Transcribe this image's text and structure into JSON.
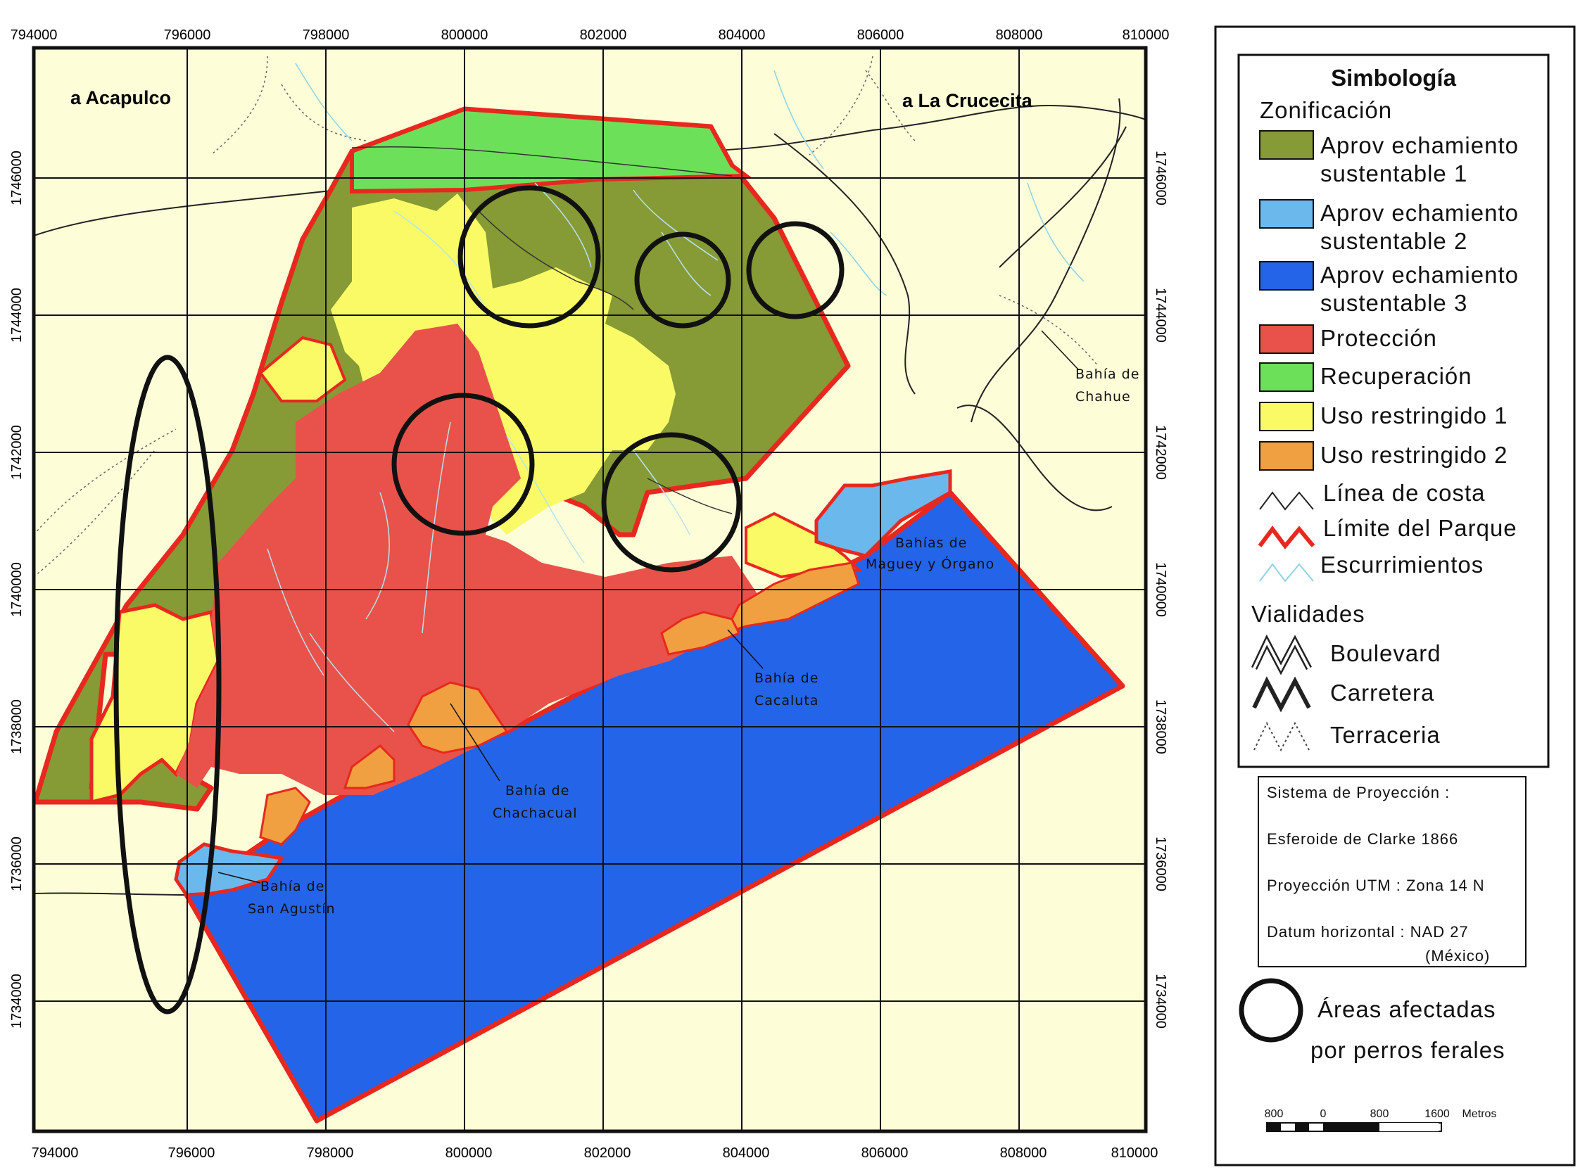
{
  "map": {
    "corner_labels": [
      "a Acapulco",
      "a La Crucecita"
    ],
    "x_ticks": [
      "794000",
      "796000",
      "798000",
      "800000",
      "802000",
      "804000",
      "806000",
      "808000",
      "810000"
    ],
    "y_ticks": [
      "1746000",
      "1744000",
      "1742000",
      "1740000",
      "1738000",
      "1736000",
      "1734000"
    ],
    "places": [
      [
        "Bahía de",
        "Chahue"
      ],
      [
        "Bahías de",
        "Maguey y Órgano"
      ],
      [
        "Bahía de",
        "Cacaluta"
      ],
      [
        "Bahía de",
        "Chachacual"
      ],
      [
        "Bahía de",
        "San Agustín"
      ]
    ],
    "affected_area_count": 6
  },
  "legend": {
    "title": "Simbología",
    "zoning_header": "Zonificación",
    "zones": [
      {
        "label": [
          "Aprov echamiento",
          "sustentable 1"
        ],
        "color": "#869a35"
      },
      {
        "label": [
          "Aprov echamiento",
          "sustentable 2"
        ],
        "color": "#6ab8ec"
      },
      {
        "label": [
          "Aprov echamiento",
          "sustentable 3"
        ],
        "color": "#2464e8"
      },
      {
        "label": [
          "Protección"
        ],
        "color": "#e8524a"
      },
      {
        "label": [
          "Recuperación"
        ],
        "color": "#6de05a"
      },
      {
        "label": [
          "Uso restringido 1"
        ],
        "color": "#fafa66"
      },
      {
        "label": [
          "Uso restringido 2"
        ],
        "color": "#f0a040"
      }
    ],
    "lines": [
      {
        "label": "Línea de costa",
        "icon": "coastline-line-icon"
      },
      {
        "label": "Límite del Parque",
        "icon": "park-boundary-line-icon"
      },
      {
        "label": "Escurrimientos",
        "icon": "runoff-line-icon"
      }
    ],
    "roads_header": "Vialidades",
    "roads": [
      {
        "label": "Boulevard",
        "icon": "boulevard-line-icon"
      },
      {
        "label": "Carretera",
        "icon": "highway-line-icon"
      },
      {
        "label": "Terraceria",
        "icon": "dirt-road-line-icon"
      }
    ]
  },
  "projection": {
    "title": "Sistema de Proyección :",
    "spheroid": "Esferoide de Clarke 1866",
    "utm": "Proyección UTM : Zona 14 N",
    "datum": "Datum horizontal : NAD 27",
    "datum_region": "(México)"
  },
  "affected": {
    "line1": "Áreas afectadas",
    "line2": "por perros ferales"
  },
  "scalebar": {
    "labels": [
      "800",
      "0",
      "800",
      "1600"
    ],
    "unit": "Metros"
  },
  "colors": {
    "background": "#fdfdd8",
    "park_boundary": "#e8281e",
    "runoff": "#8fd3e6",
    "sustentable1": "#869a35",
    "sustentable2": "#6ab8ec",
    "sustentable3": "#2464e8",
    "proteccion": "#e8524a",
    "recuperacion": "#6de05a",
    "restringido1": "#fafa66",
    "restringido2": "#f0a040"
  }
}
